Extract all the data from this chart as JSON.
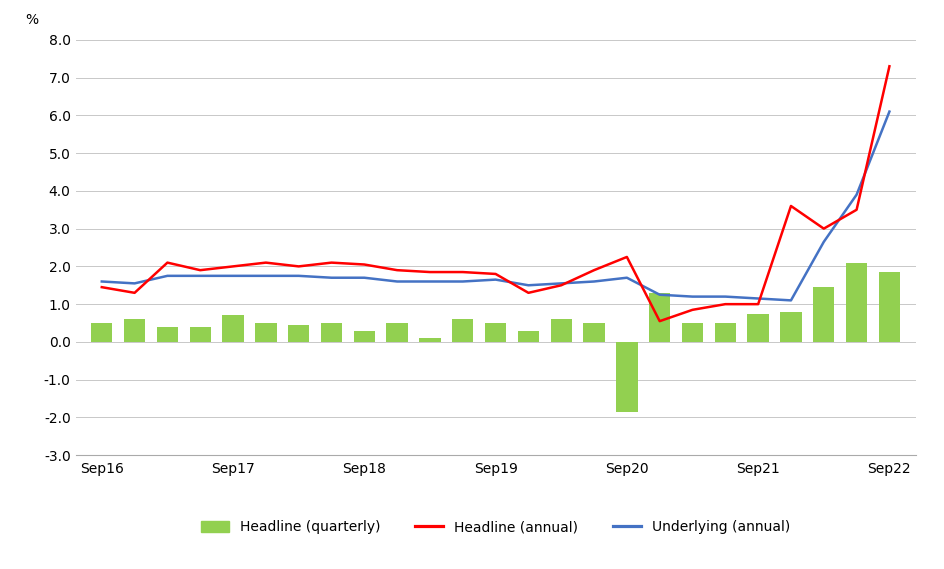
{
  "x_labels": [
    "Sep16",
    "Sep17",
    "Sep18",
    "Sep19",
    "Sep20",
    "Sep21",
    "Sep22"
  ],
  "x_tick_positions": [
    0,
    4,
    8,
    12,
    16,
    20,
    24
  ],
  "bar_x": [
    0,
    1,
    2,
    3,
    4,
    5,
    6,
    7,
    8,
    9,
    10,
    11,
    12,
    13,
    14,
    15,
    16,
    17,
    18,
    19,
    20,
    21,
    22,
    23,
    24
  ],
  "headline_quarterly": [
    0.5,
    0.6,
    0.4,
    0.4,
    0.7,
    0.5,
    0.45,
    0.5,
    0.3,
    0.5,
    0.1,
    0.6,
    0.5,
    0.3,
    0.6,
    0.5,
    -1.85,
    1.3,
    0.5,
    0.5,
    0.75,
    0.8,
    1.45,
    2.1,
    1.85
  ],
  "headline_annual": [
    1.45,
    1.3,
    2.1,
    1.9,
    2.0,
    2.1,
    2.0,
    2.1,
    2.05,
    1.9,
    1.85,
    1.85,
    1.8,
    1.3,
    1.5,
    1.9,
    2.25,
    0.55,
    0.85,
    1.0,
    1.0,
    3.6,
    3.0,
    3.5,
    7.3
  ],
  "underlying_annual": [
    1.6,
    1.55,
    1.75,
    1.75,
    1.75,
    1.75,
    1.75,
    1.7,
    1.7,
    1.6,
    1.6,
    1.6,
    1.65,
    1.5,
    1.55,
    1.6,
    1.7,
    1.25,
    1.2,
    1.2,
    1.15,
    1.1,
    2.65,
    3.9,
    6.1
  ],
  "bar_color": "#92D050",
  "headline_annual_color": "#FF0000",
  "underlying_annual_color": "#4472C4",
  "ylim": [
    -3.0,
    8.0
  ],
  "yticks": [
    -3.0,
    -2.0,
    -1.0,
    0.0,
    1.0,
    2.0,
    3.0,
    4.0,
    5.0,
    6.0,
    7.0,
    8.0
  ],
  "ylabel": "%",
  "background_color": "#FFFFFF",
  "grid_color": "#C8C8C8",
  "bar_width": 0.65,
  "line_width": 1.8
}
